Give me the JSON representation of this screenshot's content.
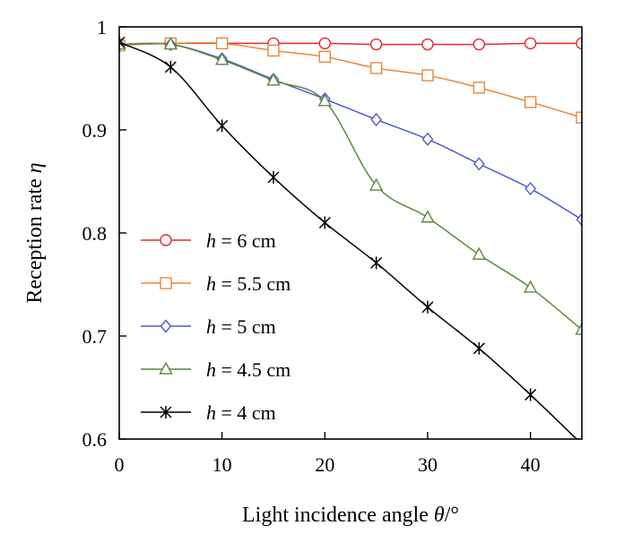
{
  "chart_data": {
    "type": "line",
    "xlabel_prefix": "Light incidence angle ",
    "xlabel_symbol": "θ",
    "xlabel_suffix": "/°",
    "ylabel_prefix": "Reception rate ",
    "ylabel_symbol": "η",
    "xlim": [
      0,
      45
    ],
    "ylim": [
      0.6,
      1.0
    ],
    "xticks": [
      0,
      10,
      20,
      30,
      40
    ],
    "yticks": [
      0.6,
      0.7,
      0.8,
      0.9,
      1.0
    ],
    "xtick_labels": [
      "0",
      "10",
      "20",
      "30",
      "40"
    ],
    "ytick_labels": [
      "0.6",
      "0.7",
      "0.8",
      "0.9",
      "1"
    ],
    "grid": false,
    "legend_position": "lower-left",
    "x": [
      0,
      5,
      10,
      15,
      20,
      25,
      30,
      35,
      40,
      45
    ],
    "series": [
      {
        "symbol": "h",
        "value_label": " = 6 cm",
        "color": "#e8282b",
        "marker": "circle",
        "values": [
          0.983,
          0.984,
          0.984,
          0.984,
          0.984,
          0.983,
          0.983,
          0.983,
          0.984,
          0.984
        ]
      },
      {
        "symbol": "h",
        "value_label": " = 5.5 cm",
        "color": "#e8883a",
        "marker": "square",
        "values": [
          0.982,
          0.984,
          0.984,
          0.977,
          0.971,
          0.96,
          0.953,
          0.941,
          0.927,
          0.912
        ]
      },
      {
        "symbol": "h",
        "value_label": " = 5 cm",
        "color": "#4f5bd5",
        "marker": "diamond",
        "values": [
          0.983,
          0.983,
          0.969,
          0.949,
          0.93,
          0.91,
          0.891,
          0.867,
          0.843,
          0.813
        ]
      },
      {
        "symbol": "h",
        "value_label": " = 4.5 cm",
        "color": "#5a8a3a",
        "marker": "triangle",
        "values": [
          0.983,
          0.983,
          0.968,
          0.948,
          0.928,
          0.846,
          0.815,
          0.779,
          0.747,
          0.706
        ]
      },
      {
        "symbol": "h",
        "value_label": " = 4 cm",
        "color": "#000000",
        "marker": "star",
        "values": [
          0.985,
          0.961,
          0.904,
          0.854,
          0.81,
          0.771,
          0.728,
          0.688,
          0.643,
          0.595
        ]
      }
    ]
  }
}
